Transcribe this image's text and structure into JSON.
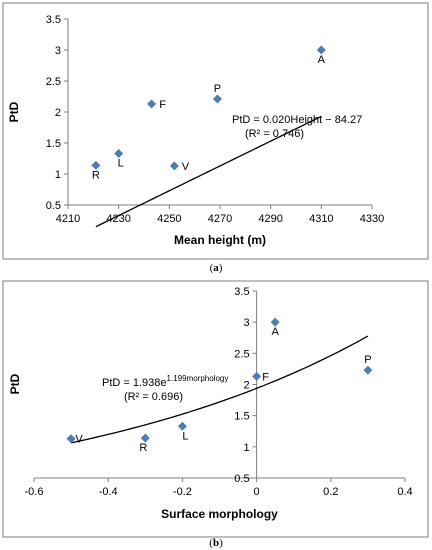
{
  "chart_data": [
    {
      "type": "scatter",
      "panel": "a",
      "caption_label": "a",
      "xlabel": "Mean height (m)",
      "ylabel": "PtD",
      "xlim": [
        4210,
        4330
      ],
      "ylim": [
        0.5,
        3.5
      ],
      "xticks": [
        4210,
        4230,
        4250,
        4270,
        4290,
        4310,
        4330
      ],
      "yticks": [
        0.5,
        1,
        1.5,
        2,
        2.5,
        3,
        3.5
      ],
      "xtick_labels": [
        "4210",
        "4230",
        "4250",
        "4270",
        "4290",
        "4310",
        "4330"
      ],
      "ytick_labels": [
        "0.5",
        "1",
        "1.5",
        "2",
        "2.5",
        "3",
        "3.5"
      ],
      "points": [
        {
          "label": "A",
          "x": 4310,
          "y": 3.0
        },
        {
          "label": "P",
          "x": 4269,
          "y": 2.21
        },
        {
          "label": "F",
          "x": 4243,
          "y": 2.13
        },
        {
          "label": "L",
          "x": 4230,
          "y": 1.33
        },
        {
          "label": "R",
          "x": 4221,
          "y": 1.14
        },
        {
          "label": "V",
          "x": 4252,
          "y": 1.13
        }
      ],
      "trendline": {
        "kind": "linear",
        "slope": 0.02,
        "intercept": -84.27,
        "x_range": [
          4221,
          4310
        ]
      },
      "equation": "PtD = 0.020Height − 84.27",
      "r_squared": "(R² = 0.746)",
      "grid": false,
      "legend": "none"
    },
    {
      "type": "scatter",
      "panel": "b",
      "caption_label": "b",
      "xlabel": "Surface morphology",
      "ylabel": "PtD",
      "xlim": [
        -0.6,
        0.4
      ],
      "ylim": [
        0.5,
        3.5
      ],
      "xticks": [
        -0.6,
        -0.4,
        -0.2,
        0,
        0.2,
        0.4
      ],
      "yticks": [
        0.5,
        1,
        1.5,
        2,
        2.5,
        3,
        3.5
      ],
      "xtick_labels": [
        "-0.6",
        "-0.4",
        "-0.2",
        "0",
        "0.2",
        "0.4"
      ],
      "ytick_labels": [
        "0.5",
        "1",
        "1.5",
        "2",
        "2.5",
        "3",
        "3.5"
      ],
      "points": [
        {
          "label": "A",
          "x": 0.05,
          "y": 3.0
        },
        {
          "label": "P",
          "x": 0.3,
          "y": 2.23
        },
        {
          "label": "F",
          "x": 0.0,
          "y": 2.13
        },
        {
          "label": "L",
          "x": -0.2,
          "y": 1.33
        },
        {
          "label": "R",
          "x": -0.3,
          "y": 1.14
        },
        {
          "label": "V",
          "x": -0.5,
          "y": 1.13
        }
      ],
      "trendline": {
        "kind": "exponential",
        "a": 1.938,
        "b": 1.199,
        "x_range": [
          -0.5,
          0.3
        ]
      },
      "equation_base": "PtD = 1.938e",
      "equation_exp": "1.199morphology",
      "r_squared": "(R² = 0.696)",
      "grid": false,
      "legend": "none"
    }
  ]
}
